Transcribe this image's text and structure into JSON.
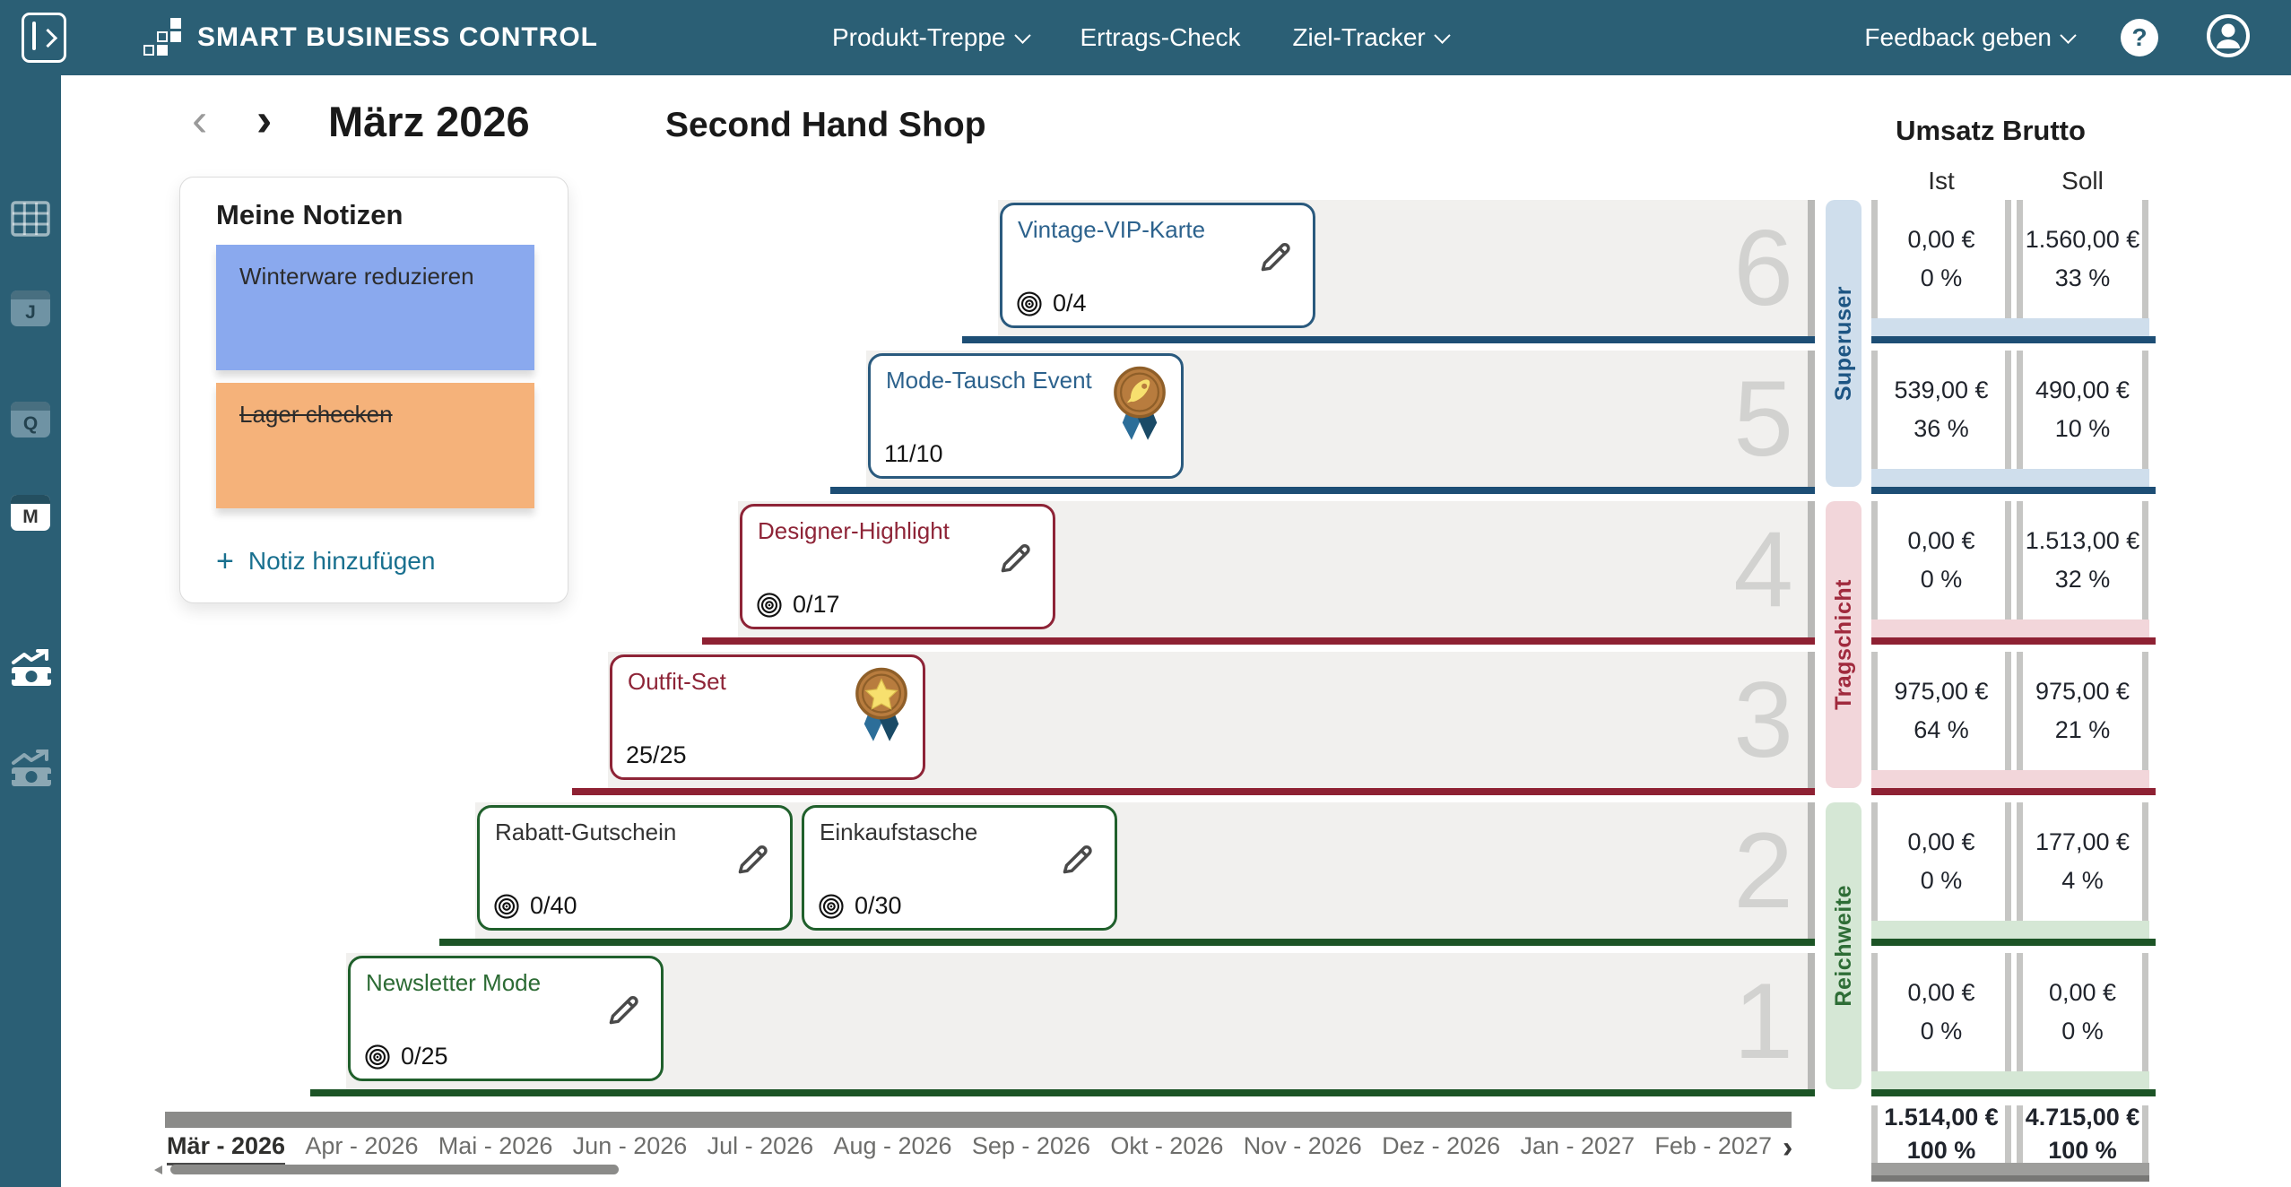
{
  "topbar": {
    "brand": "SMART BUSINESS CONTROL",
    "nav": [
      {
        "label": "Produkt-Treppe",
        "dropdown": true
      },
      {
        "label": "Ertrags-Check",
        "dropdown": false
      },
      {
        "label": "Ziel-Tracker",
        "dropdown": true
      }
    ],
    "feedback_label": "Feedback geben",
    "help_label": "?"
  },
  "sidebar": {
    "views": [
      {
        "name": "table-view-icon",
        "type": "grid",
        "letter": "",
        "active": false
      },
      {
        "name": "year-view-icon",
        "type": "calendar",
        "letter": "J",
        "active": false
      },
      {
        "name": "quarter-view-icon",
        "type": "calendar",
        "letter": "Q",
        "active": false
      },
      {
        "name": "month-view-icon",
        "type": "calendar",
        "letter": "M",
        "active": true
      }
    ],
    "money": [
      {
        "name": "revenue-actual-icon",
        "active": true
      },
      {
        "name": "revenue-plan-icon",
        "active": false
      }
    ]
  },
  "header": {
    "prev": "‹",
    "next": "›",
    "month_title": "März 2026",
    "shop_title": "Second Hand Shop"
  },
  "notes": {
    "title": "Meine Notizen",
    "items": [
      {
        "text": "Winterware reduzieren",
        "bg": "#8aa9ee",
        "strikethrough": false
      },
      {
        "text": "Lager checken",
        "bg": "#f5b27a",
        "strikethrough": true
      }
    ],
    "add_label": "Notiz hinzufügen",
    "add_plus": "+"
  },
  "layers": {
    "superuser": {
      "label": "Superuser",
      "line": "#1d4e75",
      "card_border": "#2a5a7e",
      "strip_bg": "#cfdeec",
      "label_color": "#1d5583"
    },
    "tragschicht": {
      "label": "Tragschicht",
      "line": "#8e2133",
      "card_border": "#8e2437",
      "strip_bg": "#f2d6da",
      "label_color": "#a02a3d"
    },
    "reichweite": {
      "label": "Reichweite",
      "line": "#1c5426",
      "card_border": "#20602c",
      "strip_bg": "#d5e7d5",
      "label_color": "#2e6d36"
    }
  },
  "staircase": {
    "levels": [
      {
        "number": "6",
        "layer": "superuser",
        "cards": [
          {
            "title": "Vintage-VIP-Karte",
            "title_color": "#2c628d",
            "count": "0/4",
            "show_target": true,
            "medal": null
          }
        ]
      },
      {
        "number": "5",
        "layer": "superuser",
        "cards": [
          {
            "title": "Mode-Tausch Event",
            "title_color": "#2c628d",
            "count": "11/10",
            "show_target": false,
            "medal": "rocket"
          }
        ]
      },
      {
        "number": "4",
        "layer": "tragschicht",
        "cards": [
          {
            "title": "Designer-Highlight",
            "title_color": "#8e2437",
            "count": "0/17",
            "show_target": true,
            "medal": null
          }
        ]
      },
      {
        "number": "3",
        "layer": "tragschicht",
        "cards": [
          {
            "title": "Outfit-Set",
            "title_color": "#8e2437",
            "count": "25/25",
            "show_target": false,
            "medal": "star"
          }
        ]
      },
      {
        "number": "2",
        "layer": "reichweite",
        "cards": [
          {
            "title": "Rabatt-Gutschein",
            "title_color": "#333333",
            "count": "0/40",
            "show_target": true,
            "medal": null
          },
          {
            "title": "Einkaufstasche",
            "title_color": "#333333",
            "count": "0/30",
            "show_target": true,
            "medal": null
          }
        ]
      },
      {
        "number": "1",
        "layer": "reichweite",
        "cards": [
          {
            "title": "Newsletter Mode",
            "title_color": "#2c6b34",
            "count": "0/25",
            "show_target": true,
            "medal": null
          }
        ]
      }
    ]
  },
  "revenue": {
    "title": "Umsatz Brutto",
    "columns": [
      "Ist",
      "Soll"
    ],
    "rows": [
      {
        "level": 6,
        "layer": "superuser",
        "ist": "0,00 €",
        "ist_pct": "0 %",
        "soll": "1.560,00 €",
        "soll_pct": "33 %"
      },
      {
        "level": 5,
        "layer": "superuser",
        "ist": "539,00 €",
        "ist_pct": "36 %",
        "soll": "490,00 €",
        "soll_pct": "10 %"
      },
      {
        "level": 4,
        "layer": "tragschicht",
        "ist": "0,00 €",
        "ist_pct": "0 %",
        "soll": "1.513,00 €",
        "soll_pct": "32 %"
      },
      {
        "level": 3,
        "layer": "tragschicht",
        "ist": "975,00 €",
        "ist_pct": "64 %",
        "soll": "975,00 €",
        "soll_pct": "21 %"
      },
      {
        "level": 2,
        "layer": "reichweite",
        "ist": "0,00 €",
        "ist_pct": "0 %",
        "soll": "177,00 €",
        "soll_pct": "4 %"
      },
      {
        "level": 1,
        "layer": "reichweite",
        "ist": "0,00 €",
        "ist_pct": "0 %",
        "soll": "0,00 €",
        "soll_pct": "0 %"
      }
    ],
    "total": {
      "ist": "1.514,00 €",
      "ist_pct": "100 %",
      "soll": "4.715,00 €",
      "soll_pct": "100 %"
    }
  },
  "timeline": {
    "months": [
      "Mär - 2026",
      "Apr - 2026",
      "Mai - 2026",
      "Jun - 2026",
      "Jul - 2026",
      "Aug - 2026",
      "Sep - 2026",
      "Okt - 2026",
      "Nov - 2026",
      "Dez - 2026",
      "Jan - 2027",
      "Feb - 2027"
    ],
    "active_index": 0,
    "next_arrow": "›"
  },
  "colors": {
    "topbar": "#2b5f75",
    "row_bg": "#f1f0ee",
    "wall": "#b9b9b7",
    "number": "#d2d2d0",
    "cell_bar": "#c6c6c4",
    "timeline_bar": "#8b8b89",
    "total_strip": "#9e9e9c",
    "total_line": "#787876",
    "pencil": "#4a4a4a",
    "medal_coin": "#b87c3e",
    "medal_rim": "#8f5f29",
    "medal_glyph": "#f7e06e",
    "ribbon_light": "#2c6e99",
    "ribbon_dark": "#1a4a66",
    "link": "#19708f"
  }
}
